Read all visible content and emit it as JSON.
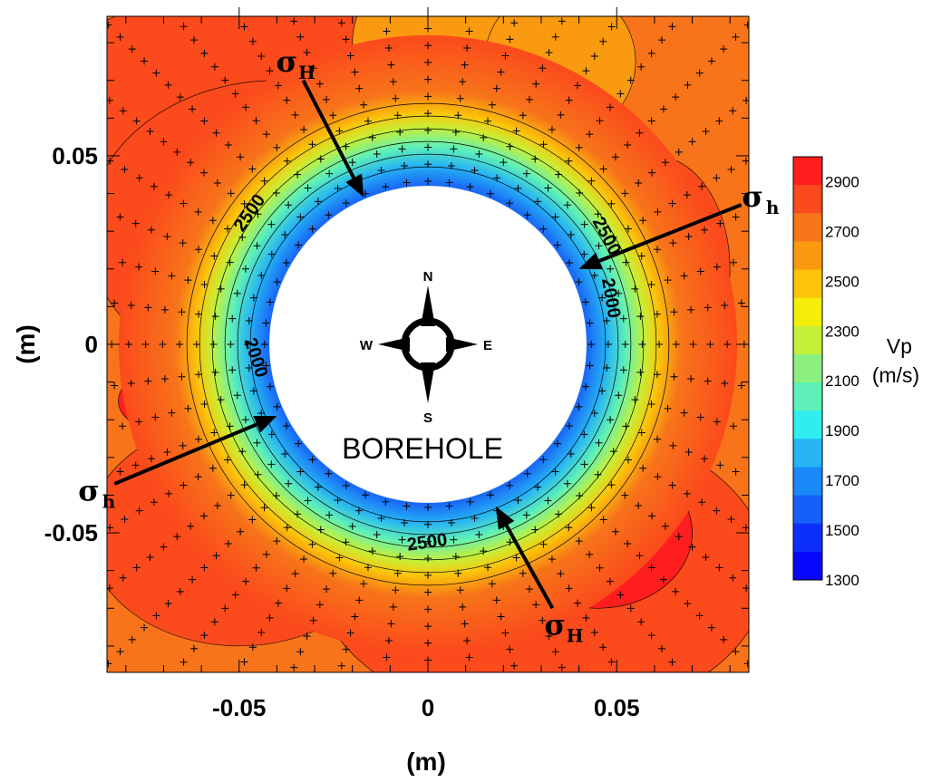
{
  "chart_data": {
    "type": "heatmap",
    "title": "",
    "xlabel": "(m)",
    "ylabel": "(m)",
    "xlim": [
      -0.085,
      0.085
    ],
    "ylim": [
      -0.087,
      0.087
    ],
    "x_ticks": [
      -0.05,
      0,
      0.05
    ],
    "y_ticks": [
      0.05,
      0,
      -0.05
    ],
    "x_tick_labels": [
      "-0.05",
      "0",
      "0.05"
    ],
    "y_tick_labels": [
      "0.05",
      "0",
      "-0.05"
    ],
    "colorbar": {
      "title_line1": "Vp",
      "title_line2": "(m/s)",
      "levels": [
        2900,
        2700,
        2500,
        2300,
        2100,
        1900,
        1700,
        1500,
        1300
      ],
      "level_labels": [
        "2900",
        "2700",
        "2500",
        "2300",
        "2100",
        "1900",
        "1700",
        "1500",
        "1300"
      ],
      "colors": [
        "#ff1e1e",
        "#fb4a1c",
        "#f7741a",
        "#f99a10",
        "#fbc40a",
        "#f4ee08",
        "#c4f03a",
        "#8cf080",
        "#5ef0b8",
        "#30eef0",
        "#26b4f4",
        "#1a8af8",
        "#1460f8",
        "#0c30fa",
        "#0806fc"
      ]
    },
    "contour_labels": [
      {
        "text": "2500",
        "x": -0.046,
        "y": 0.034,
        "angle": -55
      },
      {
        "text": "2500",
        "x": 0.046,
        "y": 0.028,
        "angle": 62
      },
      {
        "text": "2000",
        "x": 0.047,
        "y": 0.012,
        "angle": 80
      },
      {
        "text": "2000",
        "x": -0.047,
        "y": -0.004,
        "angle": 72
      },
      {
        "text": "2500",
        "x": 0.0,
        "y": -0.054,
        "angle": -8
      }
    ],
    "borehole": {
      "label": "BOREHOLE",
      "radius": 0.042
    },
    "stress_arrows": [
      {
        "symbol": "σ",
        "sub": "H",
        "from": [
          -0.033,
          0.07
        ],
        "to": [
          -0.017,
          0.039
        ]
      },
      {
        "symbol": "σ",
        "sub": "H",
        "from": [
          0.033,
          -0.07
        ],
        "to": [
          0.018,
          -0.043
        ]
      },
      {
        "symbol": "σ",
        "sub": "h",
        "from": [
          0.083,
          0.037
        ],
        "to": [
          0.04,
          0.02
        ]
      },
      {
        "symbol": "σ",
        "sub": "h",
        "from": [
          -0.083,
          -0.037
        ],
        "to": [
          -0.04,
          -0.019
        ]
      }
    ],
    "compass": {
      "n": "N",
      "s": "S",
      "e": "E",
      "w": "W"
    },
    "grid": false
  }
}
